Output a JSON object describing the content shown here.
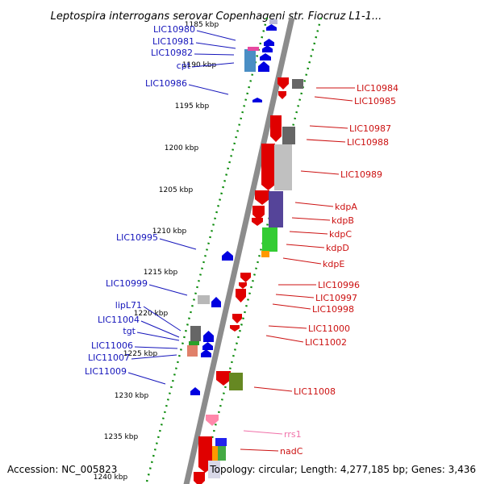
{
  "title": "Leptospira interrogans serovar Copenhageni str. Fiocruz L1-1...",
  "footer": {
    "accession": "Accession: NC_005823",
    "summary": "Topology: circular; Length: 4,277,185 bp; Genes: 3,436"
  },
  "colors": {
    "forward": "#e00000",
    "reverse": "#0000e0",
    "rna": "#ff88aa",
    "tick_dots": "#0a8a0a",
    "backbone": "#8c8c8c"
  },
  "kbp_ticks": [
    "1185 kbp",
    "1190 kbp",
    "1195 kbp",
    "1200 kbp",
    "1205 kbp",
    "1210 kbp",
    "1215 kbp",
    "1220 kbp",
    "1225 kbp",
    "1230 kbp",
    "1235 kbp",
    "1240 kbp"
  ],
  "left_genes": [
    "LIC10980",
    "LIC10981",
    "LIC10982",
    "cpt",
    "LIC10986",
    "LIC10995",
    "LIC10999",
    "lipL71",
    "LIC11004",
    "tgt",
    "LIC11006",
    "LIC11007",
    "LIC11009"
  ],
  "right_genes": [
    "LIC10984",
    "LIC10985",
    "LIC10987",
    "LIC10988",
    "LIC10989",
    "kdpA",
    "kdpB",
    "kdpC",
    "kdpD",
    "kdpE",
    "LIC10996",
    "LIC10997",
    "LIC10998",
    "LIC11000",
    "LIC11002",
    "LIC11008",
    "rrs1",
    "nadC"
  ]
}
